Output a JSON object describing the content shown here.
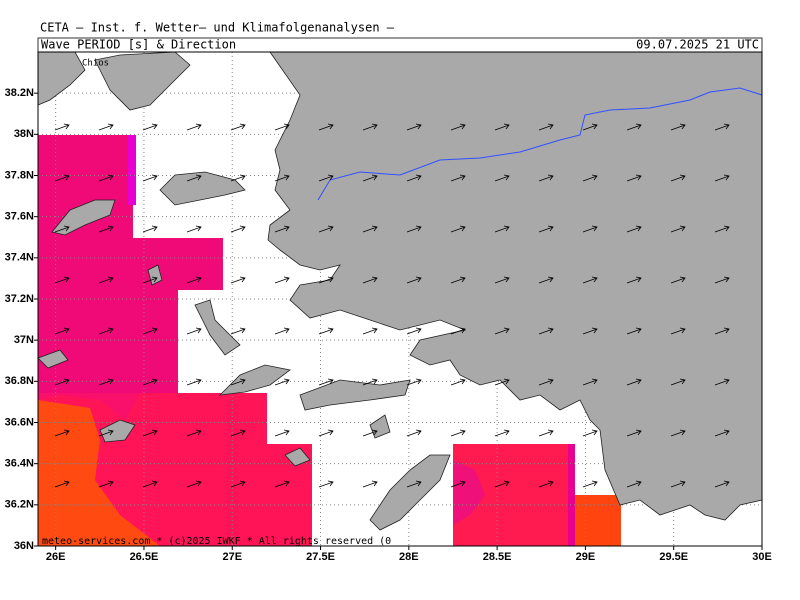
{
  "header": {
    "title": "CETA — Inst. f. Wetter— und Klimafolgenanalysen —",
    "parameter": "Wave PERIOD [s] & Direction",
    "timestamp": "09.07.2025 21 UTC"
  },
  "map": {
    "lon_range": [
      25.9,
      30
    ],
    "lat_range": [
      36,
      38.4
    ],
    "lon_ticks": [
      {
        "value": 26,
        "label": "26E"
      },
      {
        "value": 26.5,
        "label": "26.5E"
      },
      {
        "value": 27,
        "label": "27E"
      },
      {
        "value": 27.5,
        "label": "27.5E"
      },
      {
        "value": 28,
        "label": "28E"
      },
      {
        "value": 28.5,
        "label": "28.5E"
      },
      {
        "value": 29,
        "label": "29E"
      },
      {
        "value": 29.5,
        "label": "29.5E"
      },
      {
        "value": 30,
        "label": "30E"
      }
    ],
    "lat_ticks": [
      {
        "value": 36,
        "label": "36N"
      },
      {
        "value": 36.2,
        "label": "36.2N"
      },
      {
        "value": 36.4,
        "label": "36.4N"
      },
      {
        "value": 36.6,
        "label": "36.6N"
      },
      {
        "value": 36.8,
        "label": "36.8N"
      },
      {
        "value": 37,
        "label": "37N"
      },
      {
        "value": 37.2,
        "label": "37.2N"
      },
      {
        "value": 37.4,
        "label": "37.4N"
      },
      {
        "value": 37.6,
        "label": "37.6N"
      },
      {
        "value": 37.8,
        "label": "37.8N"
      },
      {
        "value": 38,
        "label": "38N"
      },
      {
        "value": 38.2,
        "label": "38.2N"
      }
    ],
    "place_label": "Chios"
  },
  "footer": {
    "credit": "meteo-services.com * (c)2025 IWKF * All rights reserved (0"
  }
}
